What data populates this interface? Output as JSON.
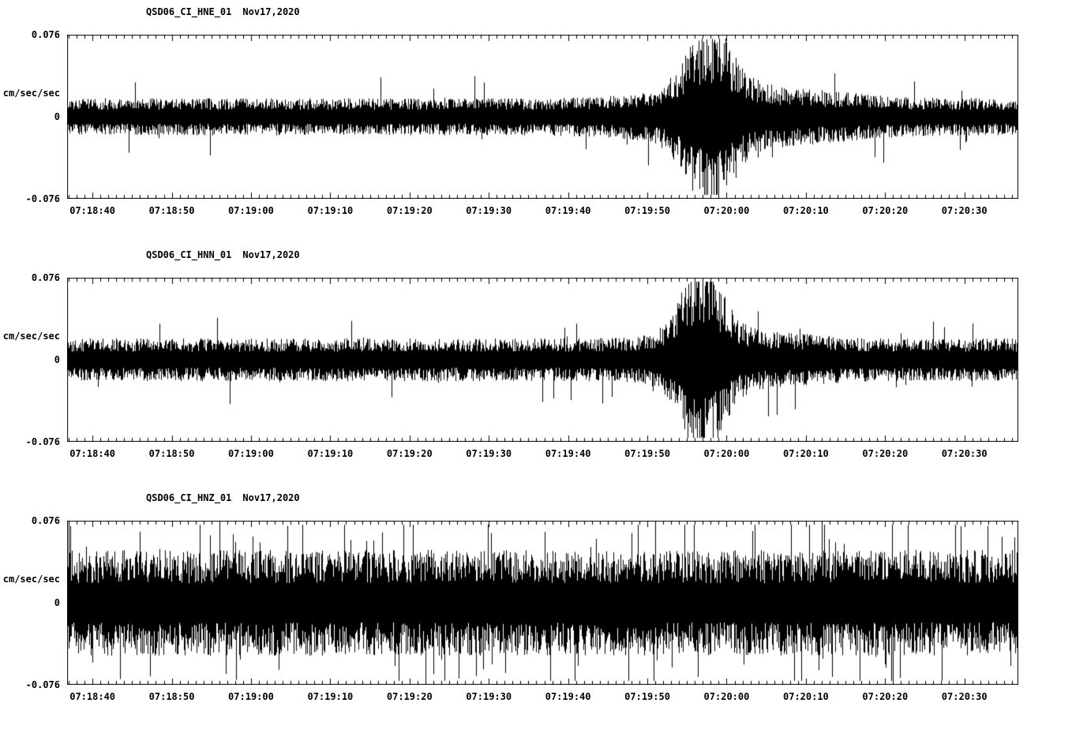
{
  "figure": {
    "background": "#ffffff",
    "trace_color": "#000000",
    "axis_color": "#000000"
  },
  "chart_data": [
    {
      "type": "line",
      "title": "QSD06_CI_HNE_01",
      "subtitle": "Nov17,2020",
      "ylabel": "cm/sec/sec",
      "ylim": [
        -0.076,
        0.076
      ],
      "y_tick_labels": [
        "0.076",
        "0",
        "-0.076"
      ],
      "x_duration_s": 120,
      "x_first_tick_s": 3.2,
      "x_tick_interval_s": 10,
      "x_tick_labels": [
        "07:18:40",
        "07:18:50",
        "07:19:00",
        "07:19:10",
        "07:19:20",
        "07:19:30",
        "07:19:40",
        "07:19:50",
        "07:20:00",
        "07:20:10",
        "07:20:20",
        "07:20:30"
      ],
      "grid": false,
      "legend": "none",
      "waveform": {
        "seed": 17,
        "base_amp": 0.013,
        "spike_prob": 0.035,
        "spike_scale": 2.2,
        "events": [
          {
            "center_s": 81,
            "width_s": 4,
            "amp": 0.042
          },
          {
            "center_s": 86,
            "width_s": 14,
            "amp": 0.009
          }
        ]
      }
    },
    {
      "type": "line",
      "title": "QSD06_CI_HNN_01",
      "subtitle": "Nov17,2020",
      "ylabel": "cm/sec/sec",
      "ylim": [
        -0.076,
        0.076
      ],
      "y_tick_labels": [
        "0.076",
        "0",
        "-0.076"
      ],
      "x_duration_s": 120,
      "x_first_tick_s": 3.2,
      "x_tick_interval_s": 10,
      "x_tick_labels": [
        "07:18:40",
        "07:18:50",
        "07:19:00",
        "07:19:10",
        "07:19:20",
        "07:19:30",
        "07:19:40",
        "07:19:50",
        "07:20:00",
        "07:20:10",
        "07:20:20",
        "07:20:30"
      ],
      "grid": false,
      "legend": "none",
      "waveform": {
        "seed": 42,
        "base_amp": 0.015,
        "spike_prob": 0.035,
        "spike_scale": 2.1,
        "events": [
          {
            "center_s": 80,
            "width_s": 3.5,
            "amp": 0.05
          },
          {
            "center_s": 85,
            "width_s": 10,
            "amp": 0.006
          }
        ]
      }
    },
    {
      "type": "line",
      "title": "QSD06_CI_HNZ_01",
      "subtitle": "Nov17,2020",
      "ylabel": "cm/sec/sec",
      "ylim": [
        -0.076,
        0.076
      ],
      "y_tick_labels": [
        "0.076",
        "0",
        "-0.076"
      ],
      "x_duration_s": 120,
      "x_first_tick_s": 3.2,
      "x_tick_interval_s": 10,
      "x_tick_labels": [
        "07:18:40",
        "07:18:50",
        "07:19:00",
        "07:19:10",
        "07:19:20",
        "07:19:30",
        "07:19:40",
        "07:19:50",
        "07:20:00",
        "07:20:10",
        "07:20:20",
        "07:20:30"
      ],
      "grid": false,
      "legend": "none",
      "waveform": {
        "seed": 77,
        "base_amp": 0.037,
        "spike_prob": 0.1,
        "spike_scale": 1.8,
        "events": []
      }
    }
  ]
}
